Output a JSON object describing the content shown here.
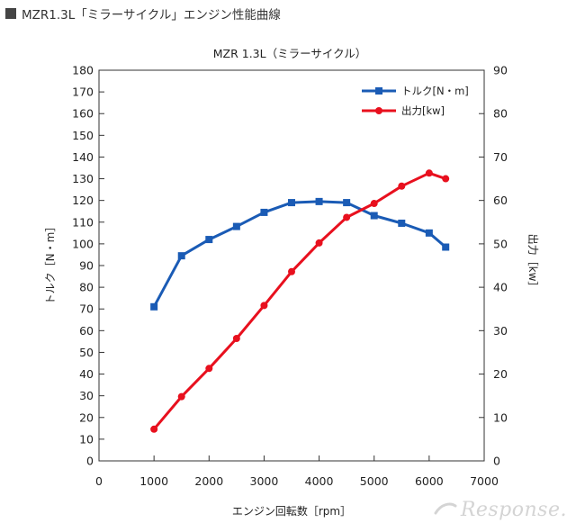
{
  "page": {
    "heading": "MZR1.3L「ミラーサイクル」エンジン性能曲線",
    "watermark": "Response."
  },
  "chart_data": {
    "type": "line",
    "title": "MZR 1.3L（ミラーサイクル）",
    "xlabel": "エンジン回転数［rpm］",
    "ylabel_left": "トルク［N・m］",
    "ylabel_right": "出力［kw］",
    "xlim": [
      0,
      7000
    ],
    "ylim_left": [
      0,
      180
    ],
    "ylim_right": [
      0,
      90
    ],
    "x_ticks": [
      "0",
      "1000",
      "2000",
      "3000",
      "4000",
      "5000",
      "6000",
      "7000"
    ],
    "y_ticks_left": [
      "0",
      "10",
      "20",
      "30",
      "40",
      "50",
      "60",
      "70",
      "80",
      "90",
      "100",
      "110",
      "120",
      "130",
      "140",
      "150",
      "160",
      "170",
      "180"
    ],
    "y_ticks_right": [
      "0",
      "10",
      "20",
      "30",
      "40",
      "50",
      "60",
      "70",
      "80",
      "90"
    ],
    "grid": false,
    "legend_position": "top-right",
    "series": [
      {
        "name": "トルク[N・m]",
        "axis": "left",
        "color": "#1a5bb5",
        "marker": "square",
        "x": [
          1000,
          1500,
          2000,
          2500,
          3000,
          3500,
          4000,
          4500,
          5000,
          5500,
          6000,
          6300
        ],
        "y": [
          71,
          94.5,
          102,
          108,
          114.5,
          119,
          119.5,
          119,
          113,
          109.5,
          105,
          98.5
        ]
      },
      {
        "name": "出力[kw]",
        "axis": "right",
        "color": "#e8101e",
        "marker": "circle",
        "x": [
          1000,
          1500,
          2000,
          2500,
          3000,
          3500,
          4000,
          4500,
          5000,
          5500,
          6000,
          6300
        ],
        "y": [
          7.3,
          14.8,
          21.3,
          28.2,
          35.8,
          43.6,
          50.2,
          56.1,
          59.3,
          63.3,
          66.3,
          65
        ]
      }
    ]
  }
}
